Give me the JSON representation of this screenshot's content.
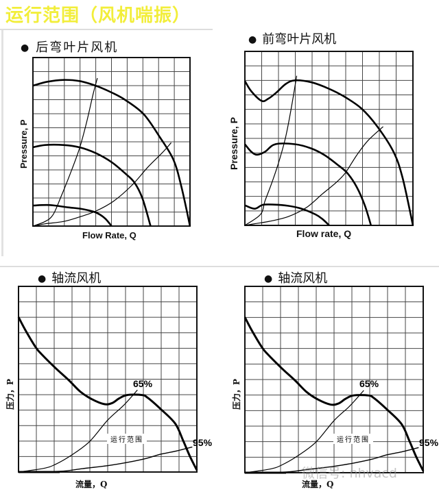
{
  "title": "运行范围（风机喘振）",
  "colors": {
    "title": "#f2ee3a",
    "grid": "#444444",
    "curve": "#000000"
  },
  "panels": [
    {
      "heading": "后弯叶片风机",
      "ylabel": "Pressure, P",
      "xlabel": "Flow Rate, Q"
    },
    {
      "heading": "前弯叶片风机",
      "ylabel": "Pressure, P",
      "xlabel": "Flow rate, Q"
    },
    {
      "heading": "轴流风机",
      "ylabel": "压力，P",
      "xlabel": "流量，Q",
      "label_65": "65%",
      "label_95": "95%",
      "range_label": "运行范围"
    },
    {
      "heading": "轴流风机",
      "ylabel": "压力，P",
      "xlabel": "流量，Q",
      "label_65": "65%",
      "label_95": "95%",
      "range_label": "运行范围"
    }
  ],
  "watermark": "微信号: nhvacd"
}
